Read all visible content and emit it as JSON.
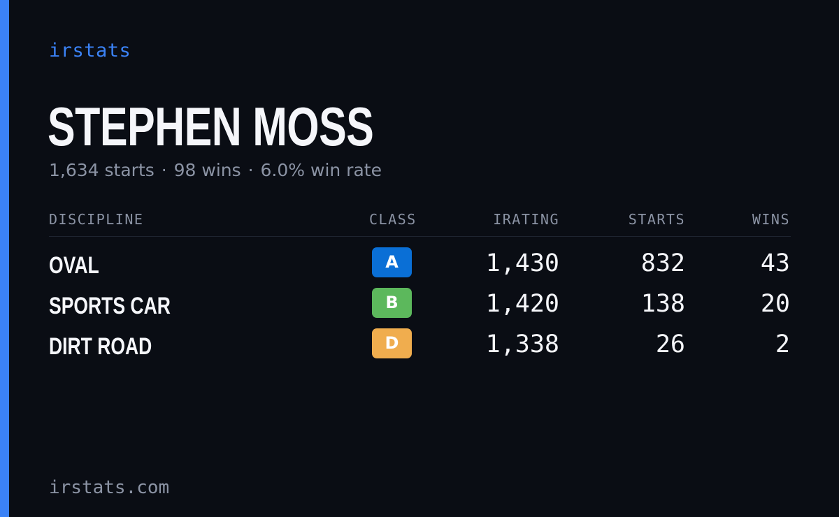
{
  "brand": "irstats",
  "driver": {
    "name": "Stephen Moss",
    "summary": {
      "starts": "1,634 starts",
      "wins": "98 wins",
      "win_rate": "6.0% win rate",
      "separator": "·"
    }
  },
  "table": {
    "headers": {
      "discipline": "DISCIPLINE",
      "class": "CLASS",
      "irating": "IRATING",
      "starts": "STARTS",
      "wins": "WINS"
    },
    "rows": [
      {
        "discipline": "Oval",
        "class": "A",
        "class_color": "#0a6fd6",
        "irating": "1,430",
        "starts": "832",
        "wins": "43"
      },
      {
        "discipline": "Sports Car",
        "class": "B",
        "class_color": "#5cb85c",
        "irating": "1,420",
        "starts": "138",
        "wins": "20"
      },
      {
        "discipline": "Dirt Road",
        "class": "D",
        "class_color": "#f0ad4e",
        "irating": "1,338",
        "starts": "26",
        "wins": "2"
      }
    ]
  },
  "footer": "irstats.com",
  "colors": {
    "accent": "#3b82f6",
    "background": "#0a0d14",
    "muted_text": "#8b93a4"
  }
}
